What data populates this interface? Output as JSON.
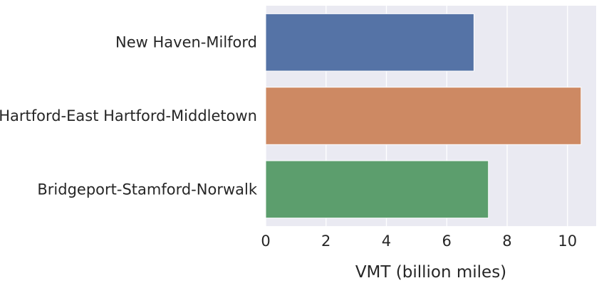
{
  "chart_data": {
    "type": "bar",
    "orientation": "horizontal",
    "categories": [
      "New Haven-Milford",
      "Hartford-East Hartford-Middletown",
      "Bridgeport-Stamford-Norwalk"
    ],
    "values": [
      6.9,
      10.45,
      7.38
    ],
    "colors": [
      "#5573a6",
      "#cd8963",
      "#5c9e6d"
    ],
    "xlabel": "VMT (billion miles)",
    "ylabel": "",
    "xlim": [
      0,
      10.95
    ],
    "xticks": [
      0,
      2,
      4,
      6,
      8,
      10
    ],
    "grid": true,
    "legend": "none"
  },
  "style": {
    "plot_background": "#eaeaf2",
    "grid_color": "#ffffff"
  }
}
